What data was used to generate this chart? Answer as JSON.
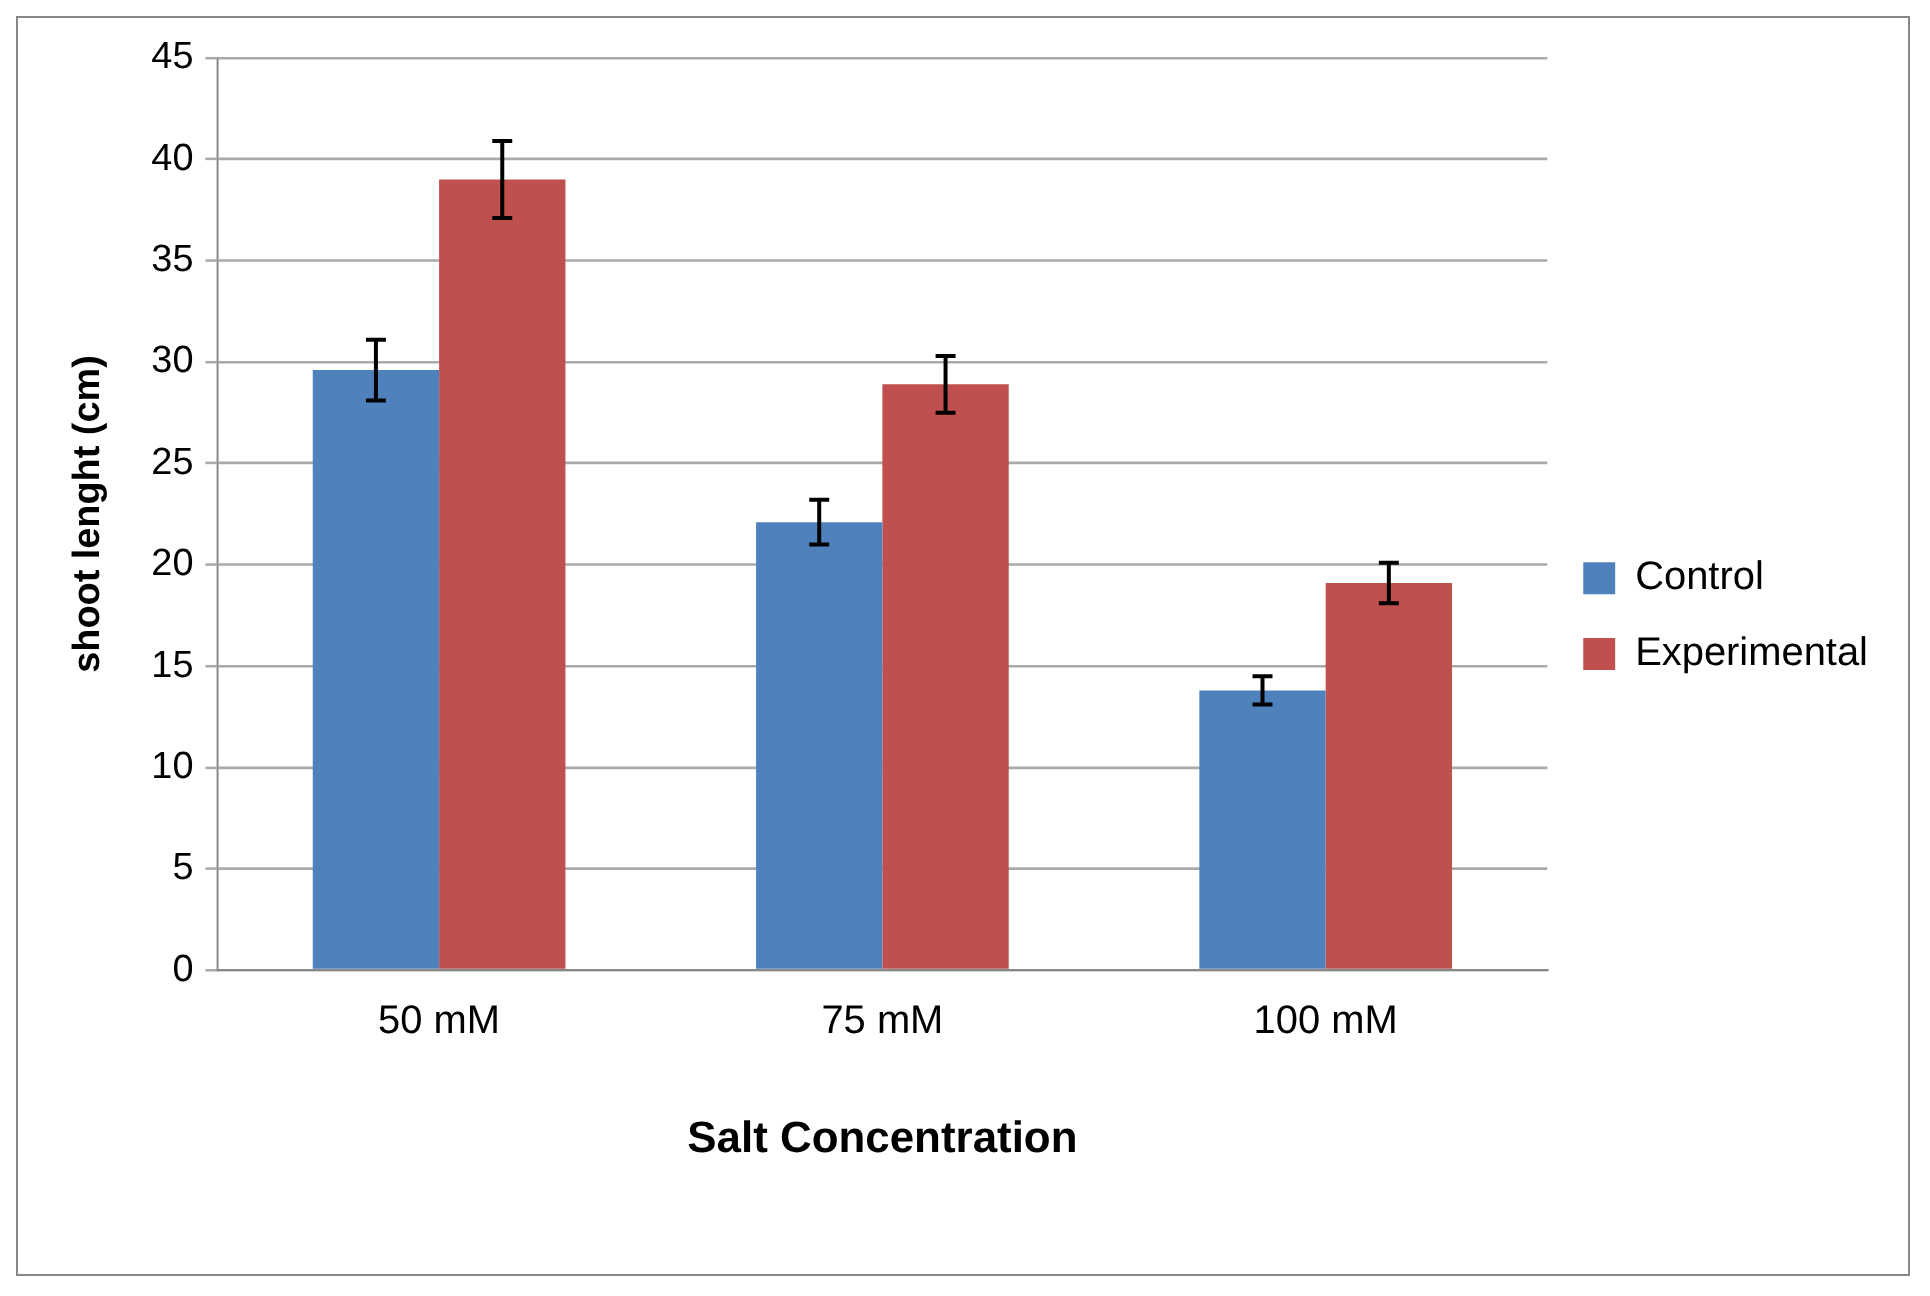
{
  "chart_data": {
    "type": "bar",
    "xlabel": "Salt Concentration",
    "ylabel": "shoot lenght (cm)",
    "categories": [
      "50 mM",
      "75 mM",
      "100 mM"
    ],
    "series": [
      {
        "name": "Control",
        "color": "#4f81bd",
        "values": [
          29.6,
          22.1,
          13.8
        ],
        "errors": [
          1.5,
          1.1,
          0.7
        ]
      },
      {
        "name": "Experimental",
        "color": "#c0504d",
        "values": [
          39,
          28.9,
          19.1
        ],
        "errors": [
          1.9,
          1.4,
          1.0
        ]
      }
    ],
    "ylim": [
      0,
      45
    ],
    "yticks": [
      0,
      5,
      10,
      15,
      20,
      25,
      30,
      35,
      40,
      45
    ],
    "grid": "y",
    "legend": "right"
  }
}
